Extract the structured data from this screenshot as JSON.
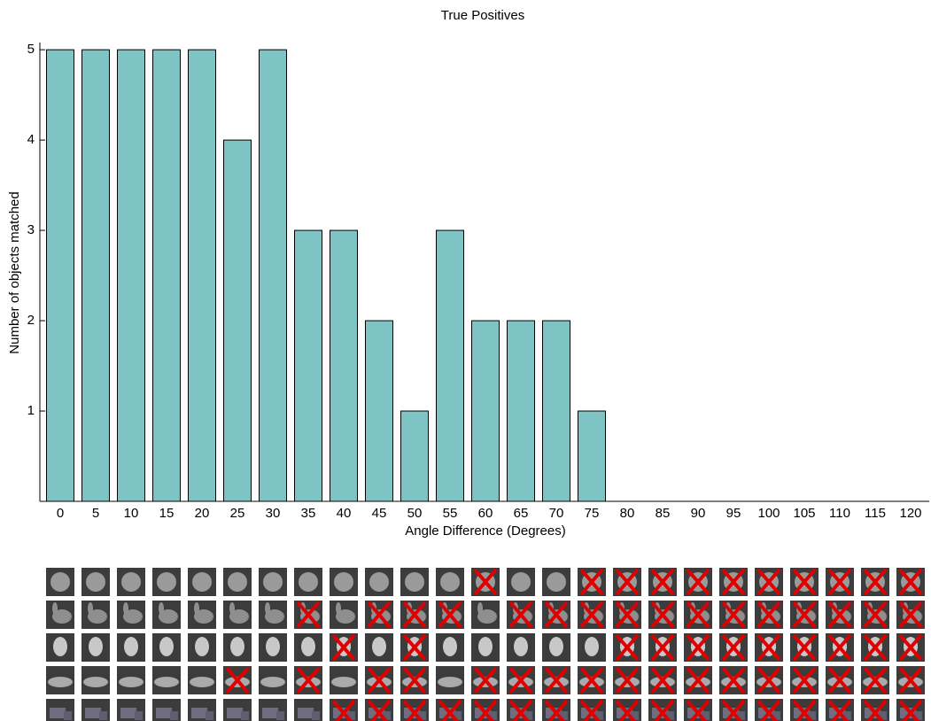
{
  "chart_data": {
    "type": "bar",
    "title": "True Positives",
    "x_label": "Angle Difference (Degrees)",
    "y_label": "Number of objects matched",
    "categories": [
      "0",
      "5",
      "10",
      "15",
      "20",
      "25",
      "30",
      "35",
      "40",
      "45",
      "50",
      "55",
      "60",
      "65",
      "70",
      "75",
      "80",
      "85",
      "90",
      "95",
      "100",
      "105",
      "110",
      "115",
      "120"
    ],
    "values": [
      5,
      5,
      5,
      5,
      5,
      4,
      5,
      3,
      3,
      2,
      1,
      3,
      2,
      2,
      2,
      1,
      0,
      0,
      0,
      0,
      0,
      0,
      0,
      0,
      0
    ],
    "color": "#7fc4c4",
    "ylim": [
      0,
      5.08
    ],
    "yticks": [
      1,
      2,
      3,
      4,
      5
    ],
    "grid": false,
    "matches": [
      [
        1,
        1,
        1,
        1,
        1,
        1,
        1,
        1,
        1,
        1,
        1,
        1,
        0,
        1,
        1,
        0,
        0,
        0,
        0,
        0,
        0,
        0,
        0,
        0,
        0
      ],
      [
        1,
        1,
        1,
        1,
        1,
        1,
        1,
        0,
        1,
        0,
        0,
        0,
        1,
        0,
        0,
        0,
        0,
        0,
        0,
        0,
        0,
        0,
        0,
        0,
        0
      ],
      [
        1,
        1,
        1,
        1,
        1,
        1,
        1,
        1,
        0,
        1,
        0,
        1,
        1,
        1,
        1,
        1,
        0,
        0,
        0,
        0,
        0,
        0,
        0,
        0,
        0
      ],
      [
        1,
        1,
        1,
        1,
        1,
        0,
        1,
        0,
        1,
        0,
        0,
        1,
        0,
        0,
        0,
        0,
        0,
        0,
        0,
        0,
        0,
        0,
        0,
        0,
        0
      ],
      [
        1,
        1,
        1,
        1,
        1,
        1,
        1,
        1,
        0,
        0,
        0,
        0,
        0,
        0,
        0,
        0,
        0,
        0,
        0,
        0,
        0,
        0,
        0,
        0,
        0
      ]
    ]
  }
}
